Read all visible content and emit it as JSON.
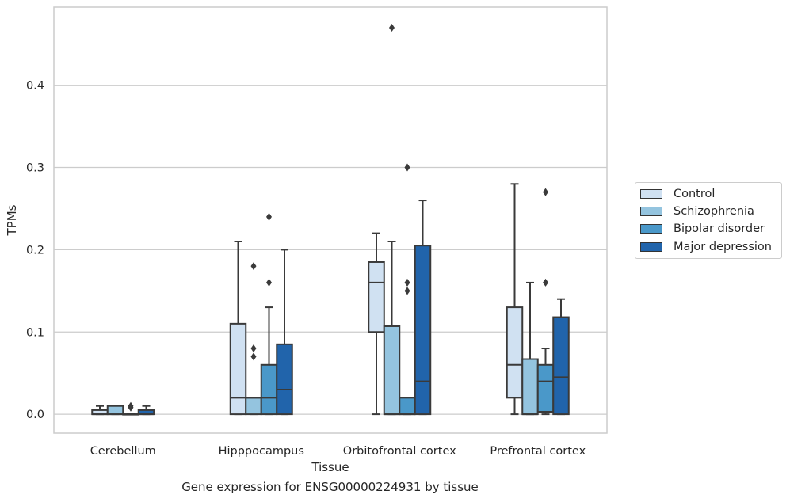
{
  "chart_data": {
    "type": "box",
    "xlabel": "Tissue",
    "ylabel": "TPMs",
    "ylim": [
      -0.023,
      0.495
    ],
    "yticks": [
      0.0,
      0.1,
      0.2,
      0.3,
      0.4
    ],
    "ytick_labels": [
      "0.0",
      "0.1",
      "0.2",
      "0.3",
      "0.4"
    ],
    "grid": "horizontal",
    "legend_placement": "right",
    "categories": [
      "Cerebellum",
      "Hipppocampus",
      "Orbitofrontal cortex",
      "Prefrontal cortex"
    ],
    "series": [
      {
        "name": "Control",
        "color": "#d0e1f2",
        "boxes": [
          {
            "min": 0.0,
            "q1": 0.0,
            "median": 0.0,
            "q3": 0.005,
            "max": 0.01,
            "outliers": []
          },
          {
            "min": 0.0,
            "q1": 0.0,
            "median": 0.02,
            "q3": 0.11,
            "max": 0.21,
            "outliers": []
          },
          {
            "min": 0.0,
            "q1": 0.1,
            "median": 0.16,
            "q3": 0.185,
            "max": 0.22,
            "outliers": []
          },
          {
            "min": 0.0,
            "q1": 0.02,
            "median": 0.06,
            "q3": 0.13,
            "max": 0.28,
            "outliers": []
          }
        ]
      },
      {
        "name": "Schizophrenia",
        "color": "#94c4df",
        "boxes": [
          {
            "min": 0.0,
            "q1": 0.0,
            "median": 0.0,
            "q3": 0.01,
            "max": 0.01,
            "outliers": []
          },
          {
            "min": 0.0,
            "q1": 0.0,
            "median": 0.02,
            "q3": 0.02,
            "max": 0.02,
            "outliers": [
              0.07,
              0.08,
              0.18
            ]
          },
          {
            "min": 0.0,
            "q1": 0.0,
            "median": 0.0,
            "q3": 0.107,
            "max": 0.21,
            "outliers": [
              0.47
            ]
          },
          {
            "min": 0.0,
            "q1": 0.0,
            "median": 0.0,
            "q3": 0.067,
            "max": 0.16,
            "outliers": []
          }
        ]
      },
      {
        "name": "Bipolar disorder",
        "color": "#4a98c9",
        "boxes": [
          {
            "min": 0.0,
            "q1": 0.0,
            "median": 0.0,
            "q3": 0.0,
            "max": 0.0,
            "outliers": [
              0.008,
              0.01
            ]
          },
          {
            "min": 0.0,
            "q1": 0.0,
            "median": 0.02,
            "q3": 0.06,
            "max": 0.13,
            "outliers": [
              0.16,
              0.24
            ]
          },
          {
            "min": 0.0,
            "q1": 0.0,
            "median": 0.0,
            "q3": 0.02,
            "max": 0.02,
            "outliers": [
              0.15,
              0.16,
              0.3
            ]
          },
          {
            "min": 0.0,
            "q1": 0.003,
            "median": 0.04,
            "q3": 0.06,
            "max": 0.08,
            "outliers": [
              0.16,
              0.27
            ]
          }
        ]
      },
      {
        "name": "Major depression",
        "color": "#2164ab",
        "boxes": [
          {
            "min": 0.0,
            "q1": 0.0,
            "median": 0.0,
            "q3": 0.005,
            "max": 0.01,
            "outliers": []
          },
          {
            "min": 0.0,
            "q1": 0.0,
            "median": 0.03,
            "q3": 0.085,
            "max": 0.2,
            "outliers": []
          },
          {
            "min": 0.0,
            "q1": 0.0,
            "median": 0.04,
            "q3": 0.205,
            "max": 0.26,
            "outliers": []
          },
          {
            "min": 0.0,
            "q1": 0.0,
            "median": 0.045,
            "q3": 0.118,
            "max": 0.14,
            "outliers": []
          }
        ]
      }
    ],
    "caption": "Gene expression for ENSG00000224931 by tissue"
  }
}
